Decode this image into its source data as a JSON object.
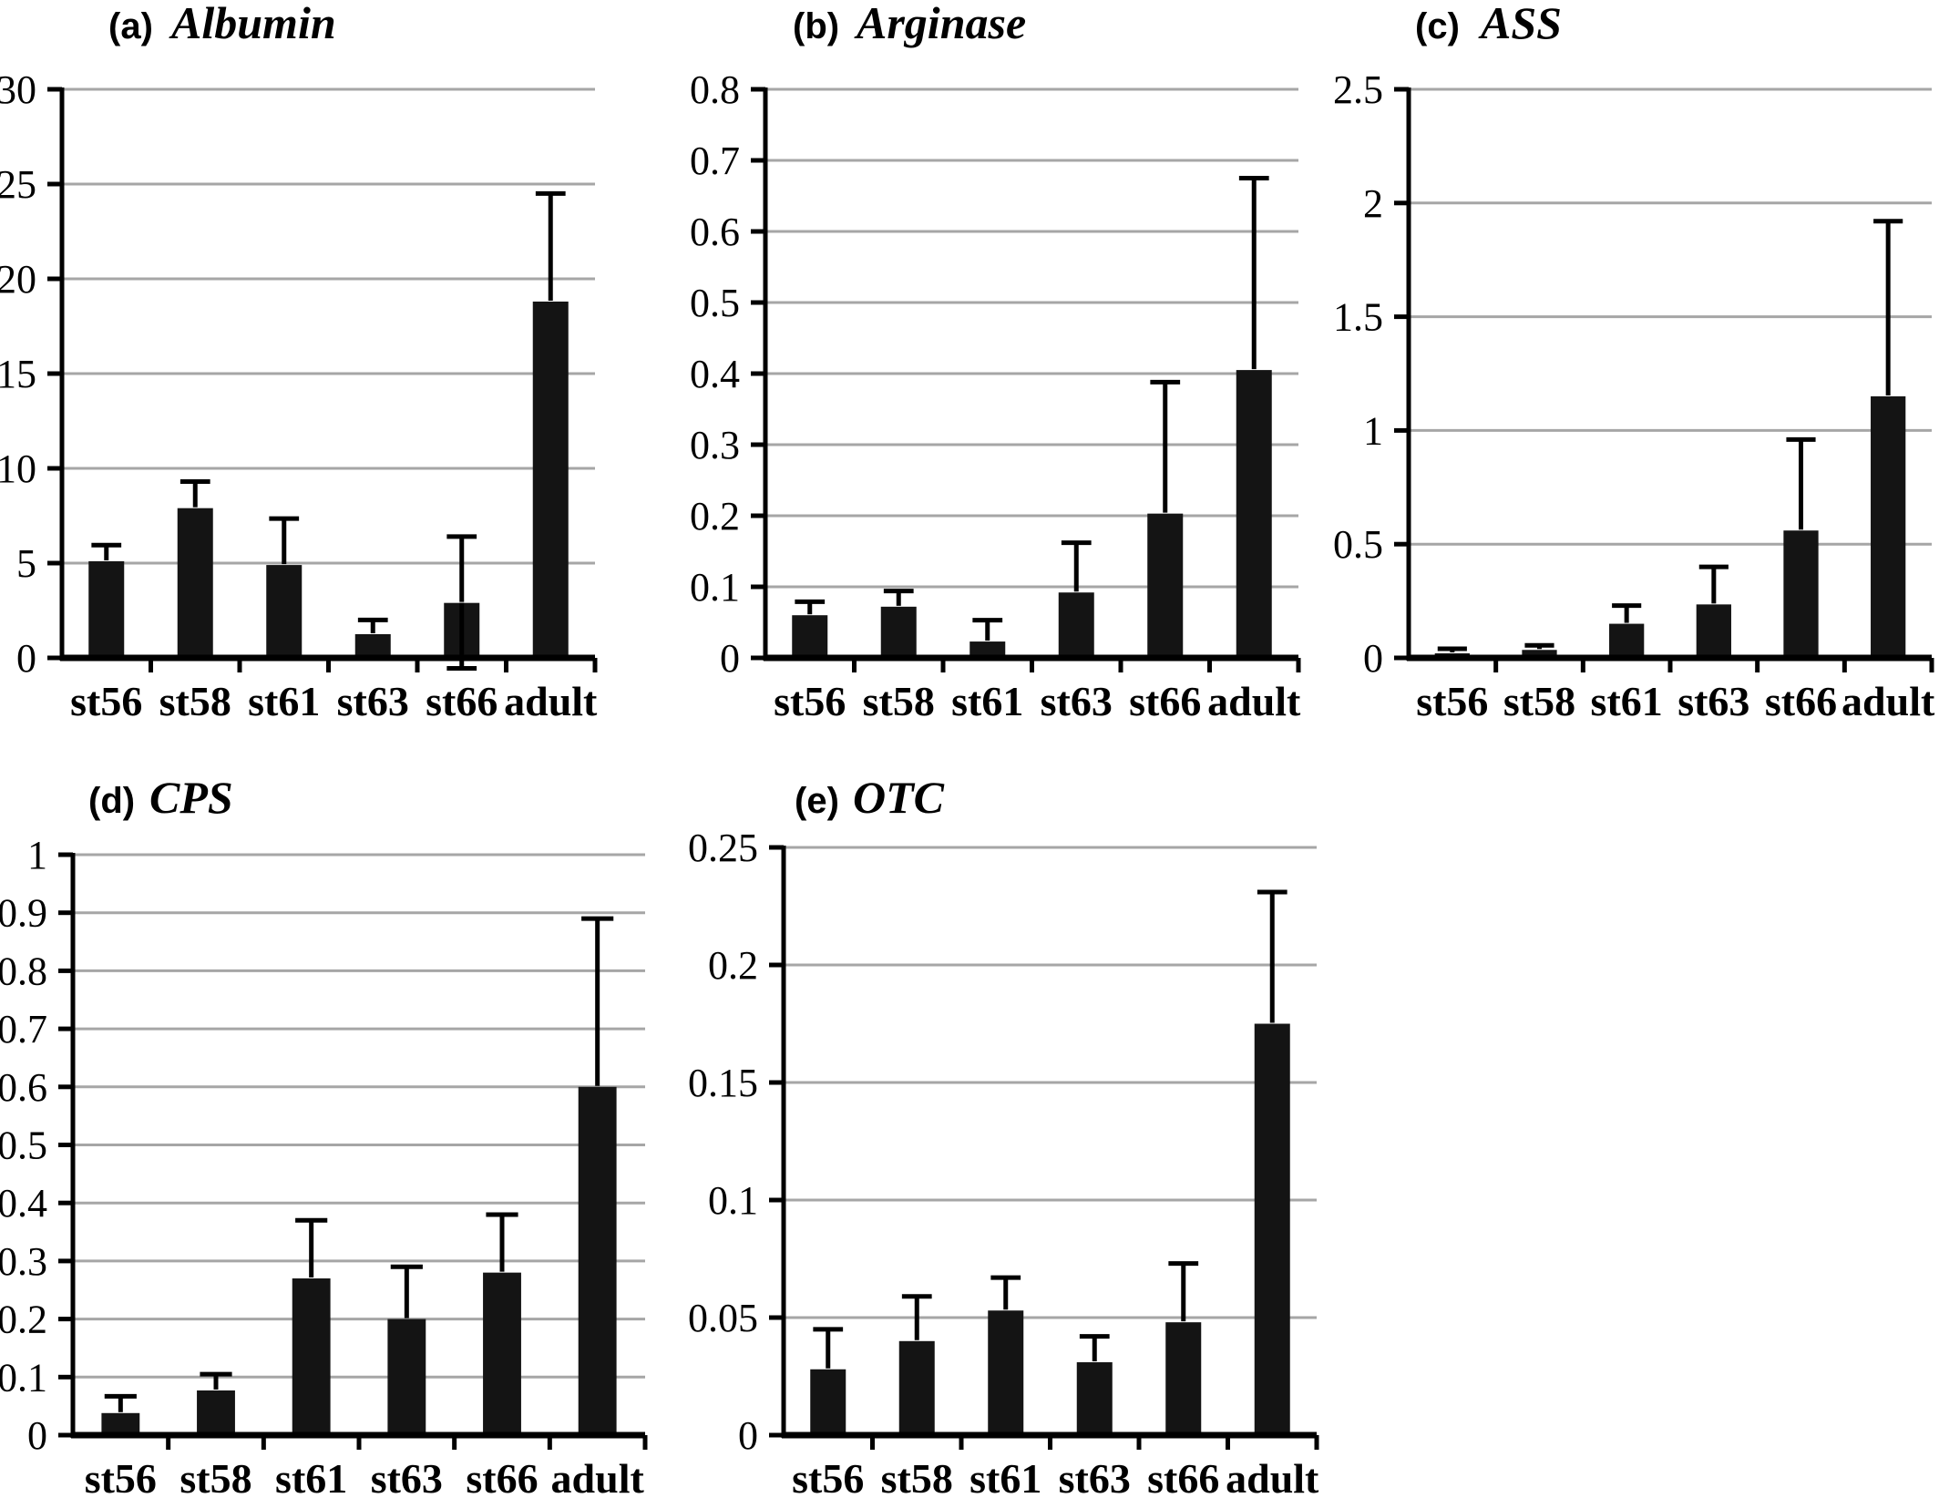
{
  "figure_kind": "five-panel-bar-figure",
  "style": {
    "background": "#ffffff",
    "bar_color": "#141414",
    "grid_color": "#a6a6a6",
    "axis_color": "#000000",
    "text_color": "#000000"
  },
  "chart_data": [
    {
      "type": "bar",
      "panel_label": "(a)",
      "title": "Albumin",
      "categories": [
        "st56",
        "st58",
        "st61",
        "st63",
        "st66",
        "adult"
      ],
      "values": [
        5.1,
        7.9,
        4.9,
        1.25,
        2.9,
        18.8
      ],
      "error_top": [
        5.95,
        9.3,
        7.35,
        2.0,
        6.4,
        24.5
      ],
      "lower_whisker": [
        null,
        null,
        null,
        null,
        -0.55,
        null
      ],
      "ylim": [
        0,
        30
      ],
      "ytick_step": 5,
      "ytick_labels": [
        "0",
        "5",
        "10",
        "15",
        "20",
        "25",
        "30"
      ],
      "grid": true,
      "legend": "none"
    },
    {
      "type": "bar",
      "panel_label": "(b)",
      "title": "Arginase",
      "categories": [
        "st56",
        "st58",
        "st61",
        "st63",
        "st66",
        "adult"
      ],
      "values": [
        0.06,
        0.072,
        0.023,
        0.092,
        0.203,
        0.405
      ],
      "error_top": [
        0.079,
        0.094,
        0.053,
        0.162,
        0.388,
        0.675
      ],
      "lower_whisker": [
        null,
        null,
        null,
        null,
        null,
        null
      ],
      "ylim": [
        0,
        0.8
      ],
      "ytick_step": 0.1,
      "ytick_labels": [
        "0",
        "0.1",
        "0.2",
        "0.3",
        "0.4",
        "0.5",
        "0.6",
        "0.7",
        "0.8"
      ],
      "grid": true,
      "legend": "none"
    },
    {
      "type": "bar",
      "panel_label": "(c)",
      "title": "ASS",
      "categories": [
        "st56",
        "st58",
        "st61",
        "st63",
        "st66",
        "adult"
      ],
      "values": [
        0.02,
        0.035,
        0.15,
        0.235,
        0.56,
        1.15
      ],
      "error_top": [
        0.04,
        0.055,
        0.23,
        0.4,
        0.96,
        1.92
      ],
      "lower_whisker": [
        null,
        null,
        null,
        null,
        null,
        null
      ],
      "ylim": [
        0,
        2.5
      ],
      "ytick_step": 0.5,
      "ytick_labels": [
        "0",
        "0.5",
        "1",
        "1.5",
        "2",
        "2.5"
      ],
      "grid": true,
      "legend": "none"
    },
    {
      "type": "bar",
      "panel_label": "(d)",
      "title": "CPS",
      "categories": [
        "st56",
        "st58",
        "st61",
        "st63",
        "st66",
        "adult"
      ],
      "values": [
        0.038,
        0.077,
        0.27,
        0.2,
        0.28,
        0.6
      ],
      "error_top": [
        0.067,
        0.105,
        0.37,
        0.29,
        0.38,
        0.89
      ],
      "lower_whisker": [
        null,
        null,
        null,
        null,
        null,
        null
      ],
      "ylim": [
        0,
        1
      ],
      "ytick_step": 0.1,
      "ytick_labels": [
        "0",
        "0.1",
        "0.2",
        "0.3",
        "0.4",
        "0.5",
        "0.6",
        "0.7",
        "0.8",
        "0.9",
        "1"
      ],
      "grid": true,
      "legend": "none"
    },
    {
      "type": "bar",
      "panel_label": "(e)",
      "title": "OTC",
      "categories": [
        "st56",
        "st58",
        "st61",
        "st63",
        "st66",
        "adult"
      ],
      "values": [
        0.028,
        0.04,
        0.053,
        0.031,
        0.048,
        0.175
      ],
      "error_top": [
        0.045,
        0.059,
        0.067,
        0.042,
        0.073,
        0.231
      ],
      "lower_whisker": [
        null,
        null,
        null,
        null,
        null,
        null
      ],
      "ylim": [
        0,
        0.25
      ],
      "ytick_step": 0.05,
      "ytick_labels": [
        "0",
        "0.05",
        "0.1",
        "0.15",
        "0.2",
        "0.25"
      ],
      "grid": true,
      "legend": "none"
    }
  ]
}
